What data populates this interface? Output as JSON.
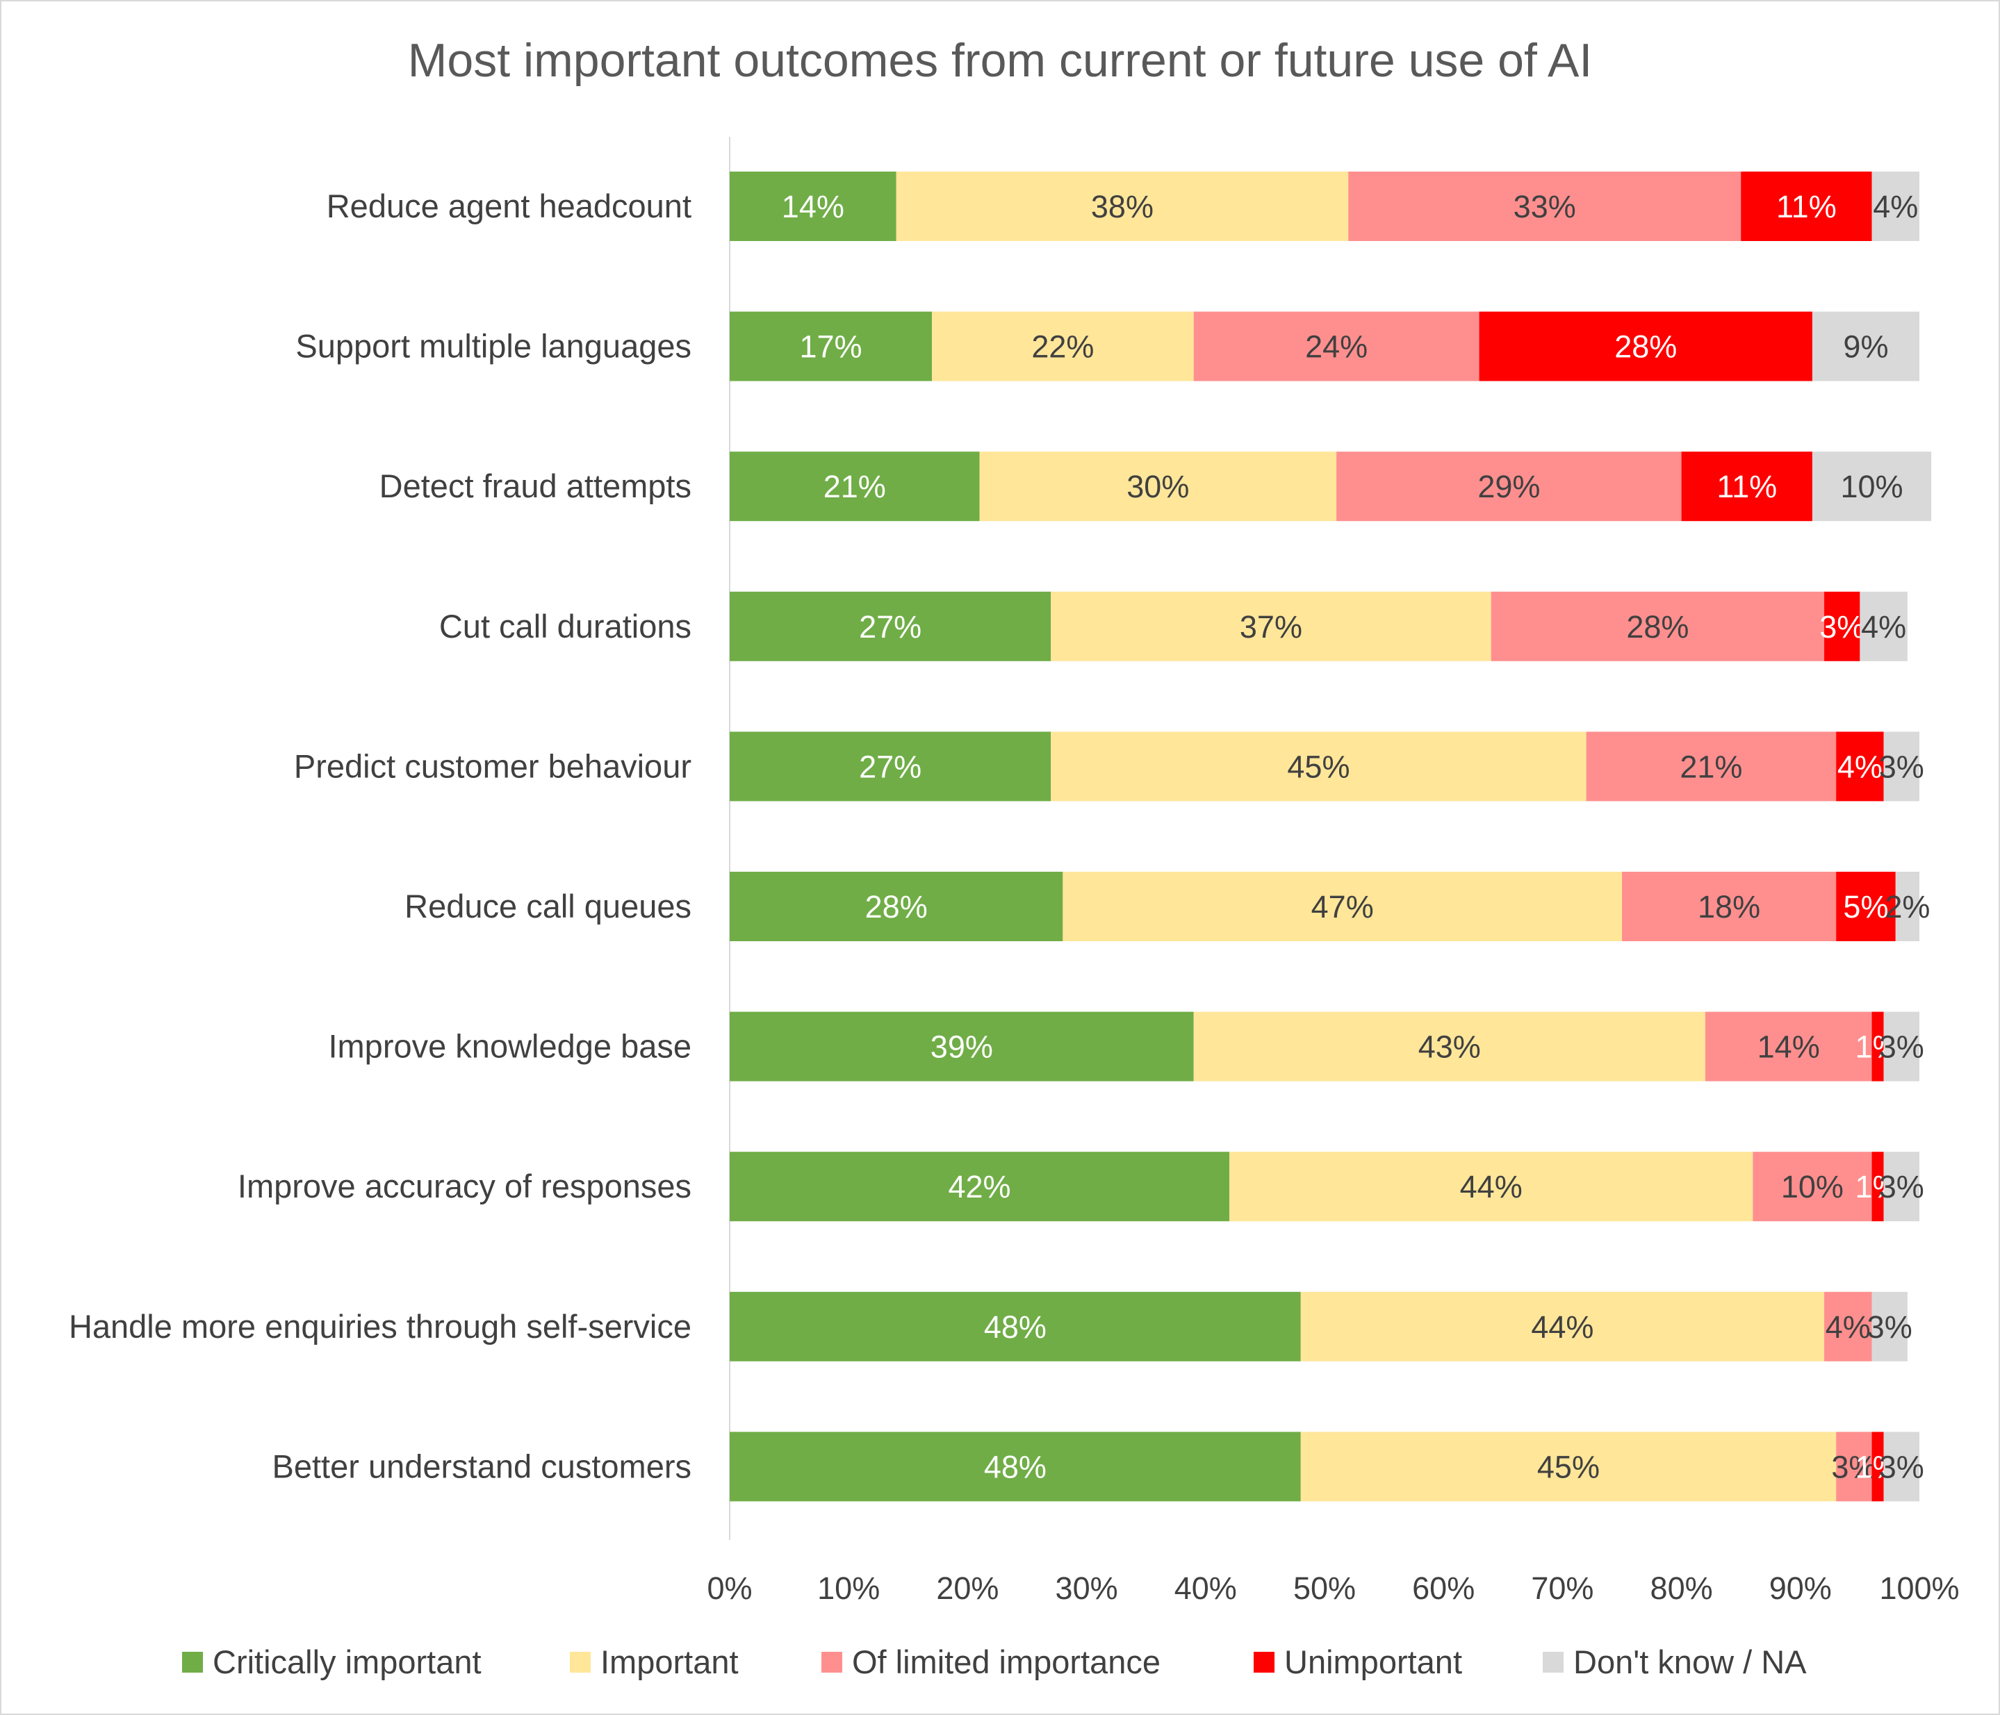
{
  "chart_data": {
    "type": "bar",
    "orientation": "horizontal",
    "stacked": true,
    "title": "Most important outcomes from current or future use of AI",
    "xlabel": "",
    "ylabel": "",
    "xlim": [
      0,
      100
    ],
    "x_ticks": [
      "0%",
      "10%",
      "20%",
      "30%",
      "40%",
      "50%",
      "60%",
      "70%",
      "80%",
      "90%",
      "100%"
    ],
    "legend_position": "bottom",
    "categories": [
      "Reduce agent headcount",
      "Support multiple languages",
      "Detect fraud attempts",
      "Cut call durations",
      "Predict customer behaviour",
      "Reduce call queues",
      "Improve knowledge base",
      "Improve accuracy of responses",
      "Handle more enquiries through self-service",
      "Better understand customers"
    ],
    "series": [
      {
        "name": "Critically important",
        "color": "#70ad47",
        "label_color": "#ffffff",
        "values": [
          14,
          17,
          21,
          27,
          27,
          28,
          39,
          42,
          48,
          48
        ],
        "labels": [
          "14%",
          "17%",
          "21%",
          "27%",
          "27%",
          "28%",
          "39%",
          "42%",
          "48%",
          "48%"
        ]
      },
      {
        "name": "Important",
        "color": "#ffe699",
        "label_color": "#404040",
        "values": [
          38,
          22,
          30,
          37,
          45,
          47,
          43,
          44,
          44,
          45
        ],
        "labels": [
          "38%",
          "22%",
          "30%",
          "37%",
          "45%",
          "47%",
          "43%",
          "44%",
          "44%",
          "45%"
        ]
      },
      {
        "name": "Of limited importance",
        "color": "#ff8f8f",
        "label_color": "#404040",
        "values": [
          33,
          24,
          29,
          28,
          21,
          18,
          14,
          10,
          4,
          3
        ],
        "labels": [
          "33%",
          "24%",
          "29%",
          "28%",
          "21%",
          "18%",
          "14%",
          "10%",
          "4%",
          "3%"
        ]
      },
      {
        "name": "Unimportant",
        "color": "#ff0000",
        "label_color": "#ffffff",
        "values": [
          11,
          28,
          11,
          3,
          4,
          5,
          1,
          1,
          0,
          1
        ],
        "labels": [
          "11%",
          "28%",
          "11%",
          "3%",
          "4%",
          "5%",
          "1%",
          "1%",
          "",
          "1%"
        ]
      },
      {
        "name": "Don't know / NA",
        "color": "#d9d9d9",
        "label_color": "#404040",
        "values": [
          4,
          9,
          10,
          4,
          3,
          2,
          3,
          3,
          3,
          3
        ],
        "labels": [
          "4%",
          "9%",
          "10%",
          "4%",
          "3%",
          "2%",
          "3%",
          "3%",
          "3%",
          "3%"
        ]
      }
    ]
  }
}
